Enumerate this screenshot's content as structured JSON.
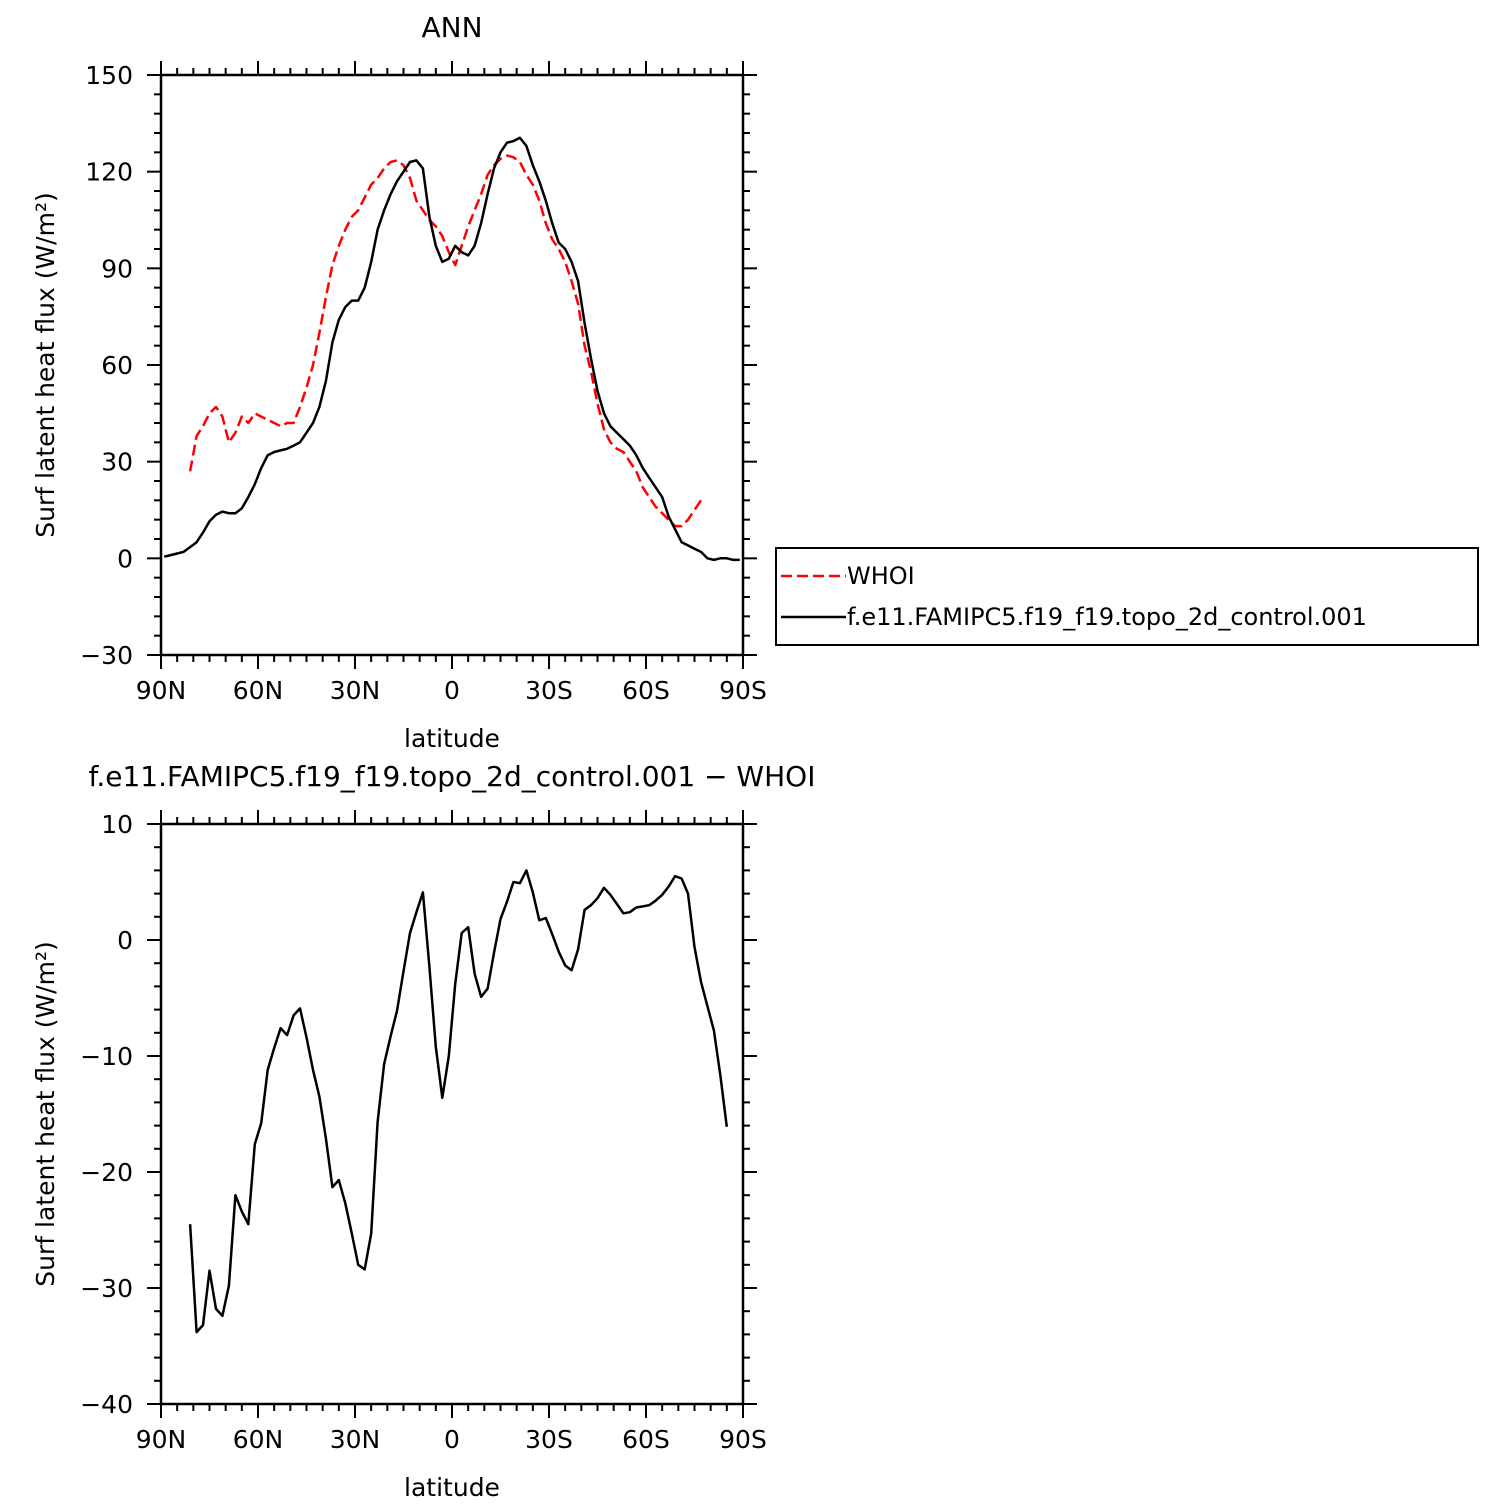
{
  "chart_data": [
    {
      "type": "line",
      "title": "ANN",
      "xlabel": "latitude",
      "ylabel": "Surf latent heat flux (W/m²)",
      "xlim": [
        90,
        -90
      ],
      "ylim": [
        -30,
        150
      ],
      "x_ticks": [
        90,
        60,
        30,
        0,
        -30,
        -60,
        -90
      ],
      "x_tick_labels": [
        "90N",
        "60N",
        "30N",
        "0",
        "30S",
        "60S",
        "90S"
      ],
      "y_ticks": [
        -30,
        0,
        30,
        60,
        90,
        120,
        150
      ],
      "y_tick_labels": [
        "−30",
        "0",
        "30",
        "60",
        "90",
        "120",
        "150"
      ],
      "grid": false,
      "legend_position": "right, outside plot",
      "series": [
        {
          "name": "WHOI",
          "color": "#ff0000",
          "style": "dashed",
          "points": [
            [
              81,
              27
            ],
            [
              79,
              38
            ],
            [
              77,
              41
            ],
            [
              75,
              45
            ],
            [
              73,
              47
            ],
            [
              71,
              44
            ],
            [
              69,
              36
            ],
            [
              67,
              39
            ],
            [
              65,
              44
            ],
            [
              63,
              42
            ],
            [
              61,
              45
            ],
            [
              59,
              44
            ],
            [
              57,
              43
            ],
            [
              55,
              42
            ],
            [
              53,
              41
            ],
            [
              51,
              42
            ],
            [
              49,
              42
            ],
            [
              47,
              47
            ],
            [
              45,
              53
            ],
            [
              43,
              60
            ],
            [
              41,
              70
            ],
            [
              39,
              81
            ],
            [
              37,
              91
            ],
            [
              35,
              97
            ],
            [
              33,
              102
            ],
            [
              31,
              106
            ],
            [
              29,
              108
            ],
            [
              27,
              112
            ],
            [
              25,
              116
            ],
            [
              23,
              118
            ],
            [
              21,
              121
            ],
            [
              19,
              123
            ],
            [
              17,
              123.5
            ],
            [
              15,
              122
            ],
            [
              13,
              118
            ],
            [
              11,
              111
            ],
            [
              9,
              108
            ],
            [
              7,
              105
            ],
            [
              5,
              103
            ],
            [
              3,
              100
            ],
            [
              1,
              95
            ],
            [
              -1,
              91
            ],
            [
              -3,
              97
            ],
            [
              -5,
              103
            ],
            [
              -7,
              108
            ],
            [
              -9,
              113
            ],
            [
              -11,
              119
            ],
            [
              -13,
              122
            ],
            [
              -15,
              124
            ],
            [
              -17,
              125
            ],
            [
              -19,
              124.5
            ],
            [
              -21,
              123
            ],
            [
              -23,
              119
            ],
            [
              -25,
              116
            ],
            [
              -27,
              111
            ],
            [
              -29,
              104
            ],
            [
              -31,
              99
            ],
            [
              -33,
              96
            ],
            [
              -35,
              92
            ],
            [
              -37,
              86
            ],
            [
              -39,
              79
            ],
            [
              -41,
              66
            ],
            [
              -43,
              58
            ],
            [
              -45,
              48
            ],
            [
              -47,
              40
            ],
            [
              -49,
              36
            ],
            [
              -51,
              34
            ],
            [
              -53,
              33
            ],
            [
              -55,
              30
            ],
            [
              -57,
              27
            ],
            [
              -59,
              22
            ],
            [
              -61,
              19
            ],
            [
              -63,
              16
            ],
            [
              -65,
              14
            ],
            [
              -67,
              12
            ],
            [
              -69,
              10
            ],
            [
              -71,
              10
            ],
            [
              -73,
              12
            ],
            [
              -75,
              15
            ],
            [
              -77,
              18
            ]
          ]
        },
        {
          "name": "f.e11.FAMIPC5.f19_f19.topo_2d_control.001",
          "color": "#000000",
          "style": "solid",
          "points": [
            [
              89,
              0.5
            ],
            [
              87,
              1
            ],
            [
              85,
              1.5
            ],
            [
              83,
              2
            ],
            [
              81,
              3.5
            ],
            [
              79,
              5
            ],
            [
              77,
              8
            ],
            [
              75,
              11.5
            ],
            [
              73,
              13.5
            ],
            [
              71,
              14.5
            ],
            [
              69,
              14
            ],
            [
              67,
              14
            ],
            [
              65,
              15.5
            ],
            [
              63,
              19
            ],
            [
              61,
              23
            ],
            [
              59,
              28
            ],
            [
              57,
              32
            ],
            [
              55,
              33
            ],
            [
              53,
              33.5
            ],
            [
              51,
              34
            ],
            [
              49,
              35
            ],
            [
              47,
              36
            ],
            [
              45,
              39
            ],
            [
              43,
              42
            ],
            [
              41,
              47
            ],
            [
              39,
              55
            ],
            [
              37,
              67
            ],
            [
              35,
              74
            ],
            [
              33,
              78
            ],
            [
              31,
              80
            ],
            [
              29,
              80
            ],
            [
              27,
              84
            ],
            [
              25,
              92
            ],
            [
              23,
              102
            ],
            [
              21,
              108
            ],
            [
              19,
              113
            ],
            [
              17,
              117
            ],
            [
              15,
              120
            ],
            [
              13,
              123
            ],
            [
              11,
              123.5
            ],
            [
              9,
              121
            ],
            [
              7,
              106
            ],
            [
              5,
              97
            ],
            [
              3,
              92
            ],
            [
              1,
              93
            ],
            [
              -1,
              97
            ],
            [
              -3,
              95
            ],
            [
              -5,
              94
            ],
            [
              -7,
              97
            ],
            [
              -9,
              104
            ],
            [
              -11,
              113
            ],
            [
              -13,
              121
            ],
            [
              -15,
              126
            ],
            [
              -17,
              129
            ],
            [
              -19,
              129.5
            ],
            [
              -21,
              130.5
            ],
            [
              -23,
              128
            ],
            [
              -25,
              122
            ],
            [
              -27,
              117
            ],
            [
              -29,
              111
            ],
            [
              -31,
              104
            ],
            [
              -33,
              98
            ],
            [
              -35,
              96
            ],
            [
              -37,
              92
            ],
            [
              -39,
              86
            ],
            [
              -41,
              73
            ],
            [
              -43,
              62
            ],
            [
              -45,
              52
            ],
            [
              -47,
              45
            ],
            [
              -49,
              41
            ],
            [
              -51,
              39
            ],
            [
              -53,
              37
            ],
            [
              -55,
              35
            ],
            [
              -57,
              32
            ],
            [
              -59,
              28
            ],
            [
              -61,
              25
            ],
            [
              -63,
              22
            ],
            [
              -65,
              19
            ],
            [
              -67,
              13
            ],
            [
              -69,
              9
            ],
            [
              -71,
              5
            ],
            [
              -73,
              4
            ],
            [
              -75,
              3
            ],
            [
              -77,
              2
            ],
            [
              -79,
              0
            ],
            [
              -81,
              -0.5
            ],
            [
              -83,
              0
            ],
            [
              -85,
              0
            ],
            [
              -87,
              -0.5
            ],
            [
              -89,
              -0.5
            ]
          ]
        }
      ]
    },
    {
      "type": "line",
      "title": "f.e11.FAMIPC5.f19_f19.topo_2d_control.001 − WHOI",
      "xlabel": "latitude",
      "ylabel": "Surf latent heat flux (W/m²)",
      "xlim": [
        90,
        -90
      ],
      "ylim": [
        -40,
        10
      ],
      "x_ticks": [
        90,
        60,
        30,
        0,
        -30,
        -60,
        -90
      ],
      "x_tick_labels": [
        "90N",
        "60N",
        "30N",
        "0",
        "30S",
        "60S",
        "90S"
      ],
      "y_ticks": [
        -40,
        -30,
        -20,
        -10,
        0,
        10
      ],
      "y_tick_labels": [
        "−40",
        "−30",
        "−20",
        "−10",
        "0",
        "10"
      ],
      "grid": false,
      "series": [
        {
          "color": "#000000",
          "style": "solid",
          "points": [
            [
              81,
              -24.5
            ],
            [
              79,
              -33.8
            ],
            [
              77,
              -33.2
            ],
            [
              75,
              -28.5
            ],
            [
              73,
              -31.8
            ],
            [
              71,
              -32.4
            ],
            [
              69,
              -29.8
            ],
            [
              67,
              -22
            ],
            [
              65,
              -23.4
            ],
            [
              63,
              -24.5
            ],
            [
              61,
              -17.6
            ],
            [
              59,
              -15.8
            ],
            [
              57,
              -11.2
            ],
            [
              55,
              -9.3
            ],
            [
              53,
              -7.6
            ],
            [
              51,
              -8.2
            ],
            [
              49,
              -6.5
            ],
            [
              47,
              -5.9
            ],
            [
              45,
              -8.4
            ],
            [
              43,
              -11.2
            ],
            [
              41,
              -13.5
            ],
            [
              39,
              -17.1
            ],
            [
              37,
              -21.3
            ],
            [
              35,
              -20.7
            ],
            [
              33,
              -22.7
            ],
            [
              31,
              -25.3
            ],
            [
              29,
              -28
            ],
            [
              27,
              -28.4
            ],
            [
              25,
              -25.3
            ],
            [
              23,
              -15.7
            ],
            [
              21,
              -10.7
            ],
            [
              19,
              -8.3
            ],
            [
              17,
              -6.1
            ],
            [
              15,
              -2.7
            ],
            [
              13,
              0.6
            ],
            [
              11,
              2.4
            ],
            [
              9,
              4.1
            ],
            [
              7,
              -2.3
            ],
            [
              5,
              -9.2
            ],
            [
              3,
              -13.6
            ],
            [
              1,
              -10
            ],
            [
              -1,
              -3.8
            ],
            [
              -3,
              0.6
            ],
            [
              -5,
              1.1
            ],
            [
              -7,
              -2.9
            ],
            [
              -9,
              -4.9
            ],
            [
              -11,
              -4.2
            ],
            [
              -13,
              -1.1
            ],
            [
              -15,
              1.8
            ],
            [
              -17,
              3.3
            ],
            [
              -19,
              5
            ],
            [
              -21,
              4.9
            ],
            [
              -23,
              6
            ],
            [
              -25,
              4.1
            ],
            [
              -27,
              1.7
            ],
            [
              -29,
              1.9
            ],
            [
              -31,
              0.5
            ],
            [
              -33,
              -1
            ],
            [
              -35,
              -2.2
            ],
            [
              -37,
              -2.6
            ],
            [
              -39,
              -0.8
            ],
            [
              -41,
              2.6
            ],
            [
              -43,
              3
            ],
            [
              -45,
              3.6
            ],
            [
              -47,
              4.5
            ],
            [
              -49,
              3.9
            ],
            [
              -51,
              3.1
            ],
            [
              -53,
              2.3
            ],
            [
              -55,
              2.4
            ],
            [
              -57,
              2.8
            ],
            [
              -59,
              2.9
            ],
            [
              -61,
              3
            ],
            [
              -63,
              3.4
            ],
            [
              -65,
              3.9
            ],
            [
              -67,
              4.6
            ],
            [
              -69,
              5.5
            ],
            [
              -71,
              5.3
            ],
            [
              -73,
              4
            ],
            [
              -75,
              -0.6
            ],
            [
              -77,
              -3.6
            ],
            [
              -79,
              -5.7
            ],
            [
              -81,
              -7.8
            ],
            [
              -83,
              -11.7
            ],
            [
              -85,
              -16.1
            ]
          ]
        }
      ]
    }
  ]
}
